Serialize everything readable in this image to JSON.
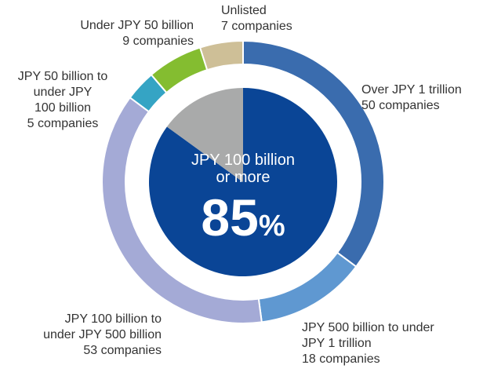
{
  "chart_data": {
    "type": "donut",
    "categories": [
      [
        "Over JPY 1 trillion"
      ],
      [
        "JPY 500 billion to under",
        "JPY 1 trillion"
      ],
      [
        "JPY 100 billion to",
        "under JPY 500 billion"
      ],
      [
        "JPY 50 billion to",
        "under JPY",
        "100 billion"
      ],
      [
        "Under JPY 50 billion"
      ],
      [
        "Unlisted"
      ]
    ],
    "values": [
      50,
      18,
      53,
      5,
      9,
      7
    ],
    "value_labels": [
      "50 companies",
      "18 companies",
      "53 companies",
      "5 companies",
      "9 companies",
      "7 companies"
    ],
    "colors": [
      "#3a6cae",
      "#5f98d1",
      "#a4aad6",
      "#35a4c4",
      "#84bd30",
      "#cebf97"
    ],
    "inner": {
      "title": [
        "JPY 100 billion",
        "or more"
      ],
      "values": [
        85,
        15
      ],
      "value_labels": [
        "85"
      ],
      "unit": "%",
      "colors": [
        "#0a4596",
        "#a9aaaa"
      ]
    }
  }
}
